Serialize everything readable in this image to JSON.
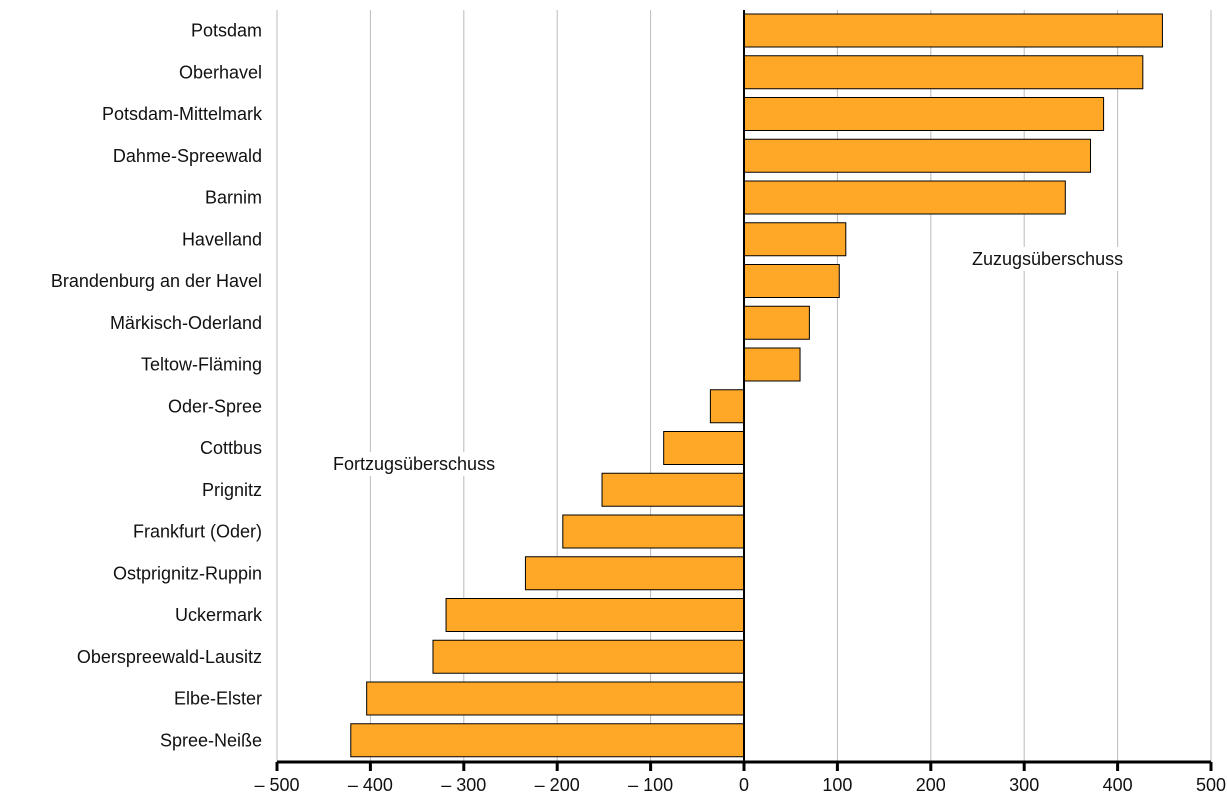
{
  "chart_data": {
    "type": "bar",
    "orientation": "horizontal",
    "categories": [
      "Potsdam",
      "Oberhavel",
      "Potsdam-Mittelmark",
      "Dahme-Spreewald",
      "Barnim",
      "Havelland",
      "Brandenburg an der Havel",
      "Märkisch-Oderland",
      "Teltow-Fläming",
      "Oder-Spree",
      "Cottbus",
      "Prignitz",
      "Frankfurt (Oder)",
      "Ostprignitz-Ruppin",
      "Uckermark",
      "Oberspreewald-Lausitz",
      "Elbe-Elster",
      "Spree-Neiße"
    ],
    "values": [
      448,
      427,
      385,
      371,
      344,
      109,
      102,
      70,
      60,
      -36,
      -86,
      -152,
      -194,
      -234,
      -319,
      -333,
      -404,
      -421
    ],
    "xlim": [
      -500,
      500
    ],
    "xticks": [
      -500,
      -400,
      -300,
      -200,
      -100,
      0,
      100,
      200,
      300,
      400,
      500
    ],
    "xtick_labels": [
      "– 500",
      "– 400",
      "– 300",
      "– 200",
      "– 100",
      "0",
      "100",
      "200",
      "300",
      "400",
      "500"
    ],
    "grid": "vertical",
    "bar_color": "#FFA726",
    "annotations": {
      "positive": "Zuzugsüberschuss",
      "negative": "Fortzugsüberschuss"
    }
  }
}
